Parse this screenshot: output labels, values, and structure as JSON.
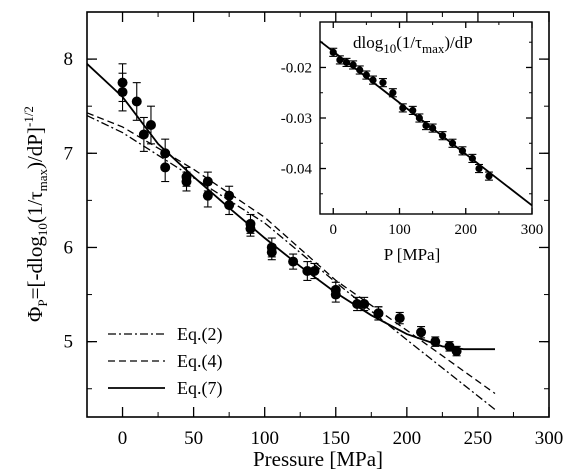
{
  "chart_data": [
    {
      "type": "scatter",
      "xlabel": "Pressure [MPa]",
      "ylabel": {
        "prefix": "Φ",
        "prefix_sub": "P",
        "middle": "=[-dlog",
        "middle_sub": "10",
        "after_log": "(1/τ",
        "tau_sub": "max",
        "end": ")/dP]",
        "power": "-1/2"
      },
      "xlim": [
        -25,
        300
      ],
      "ylim": [
        4.2,
        8.5
      ],
      "xticks": [
        "0",
        "50",
        "100",
        "150",
        "200",
        "250",
        "300"
      ],
      "yticks": [
        "5",
        "6",
        "7",
        "8"
      ],
      "series": [
        {
          "kind": "points",
          "x": [
            0,
            0,
            10,
            15,
            20,
            30,
            30,
            45,
            45,
            60,
            60,
            75,
            75,
            90,
            90,
            105,
            105,
            120,
            130,
            135,
            150,
            150,
            165,
            170,
            180,
            180,
            195,
            210,
            220,
            230,
            235
          ],
          "y": [
            7.75,
            7.65,
            7.55,
            7.2,
            7.3,
            7.0,
            6.85,
            6.75,
            6.7,
            6.7,
            6.55,
            6.55,
            6.45,
            6.25,
            6.2,
            6.0,
            5.95,
            5.85,
            5.75,
            5.75,
            5.55,
            5.5,
            5.4,
            5.4,
            5.3,
            5.3,
            5.25,
            5.1,
            5.0,
            4.95,
            4.9
          ],
          "err": [
            0.2,
            0.2,
            0.2,
            0.18,
            0.2,
            0.15,
            0.15,
            0.1,
            0.1,
            0.1,
            0.12,
            0.1,
            0.1,
            0.1,
            0.08,
            0.1,
            0.08,
            0.08,
            0.1,
            0.08,
            0.08,
            0.08,
            0.07,
            0.07,
            0.07,
            0.07,
            0.06,
            0.06,
            0.05,
            0.05,
            0.05
          ]
        },
        {
          "kind": "line",
          "name": "Eq.(2)",
          "dash": "dashdot",
          "x": [
            -25,
            0,
            50,
            100,
            150,
            200,
            262
          ],
          "y": [
            7.4,
            7.22,
            6.74,
            6.26,
            5.63,
            5.02,
            4.28
          ]
        },
        {
          "kind": "line",
          "name": "Eq.(4)",
          "dash": "dash",
          "x": [
            -25,
            0,
            50,
            100,
            150,
            200,
            262
          ],
          "y": [
            7.43,
            7.28,
            6.83,
            6.32,
            5.65,
            5.12,
            4.45
          ]
        },
        {
          "kind": "line",
          "name": "Eq.(7)",
          "dash": "solid",
          "x": [
            -25,
            0,
            25,
            50,
            75,
            100,
            125,
            150,
            175,
            200,
            225,
            240,
            262
          ],
          "y": [
            7.95,
            7.6,
            7.1,
            6.75,
            6.42,
            6.1,
            5.8,
            5.52,
            5.28,
            5.08,
            4.95,
            4.92,
            4.92
          ]
        }
      ],
      "legend_position": "bottom-left"
    },
    {
      "type": "scatter",
      "title": {
        "pre": "dlog",
        "sub1": "10",
        "mid": "(1/τ",
        "sub2": "max",
        "end": ")/dP"
      },
      "xlabel": "P [MPa]",
      "xlim": [
        -20,
        300
      ],
      "ylim": [
        -0.049,
        -0.011
      ],
      "xticks": [
        "0",
        "100",
        "200",
        "300"
      ],
      "yticks": [
        "-0.02",
        "-0.03",
        "-0.04"
      ],
      "series": [
        {
          "kind": "points",
          "x": [
            0,
            10,
            20,
            30,
            40,
            50,
            60,
            75,
            90,
            105,
            120,
            130,
            140,
            150,
            165,
            180,
            195,
            210,
            220,
            235
          ],
          "y": [
            -0.017,
            -0.0185,
            -0.019,
            -0.0195,
            -0.0205,
            -0.0215,
            -0.0225,
            -0.023,
            -0.025,
            -0.028,
            -0.0285,
            -0.03,
            -0.0315,
            -0.032,
            -0.0335,
            -0.035,
            -0.0365,
            -0.038,
            -0.04,
            -0.0415
          ],
          "err": [
            0.0008,
            0.0008,
            0.0008,
            0.0008,
            0.0008,
            0.0008,
            0.0008,
            0.0008,
            0.0008,
            0.0008,
            0.0008,
            0.0008,
            0.0008,
            0.0008,
            0.0008,
            0.0008,
            0.0008,
            0.0008,
            0.0008,
            0.0008
          ]
        },
        {
          "kind": "line",
          "dash": "solid",
          "x": [
            -20,
            300
          ],
          "y": [
            -0.0148,
            -0.0473
          ]
        }
      ]
    }
  ]
}
